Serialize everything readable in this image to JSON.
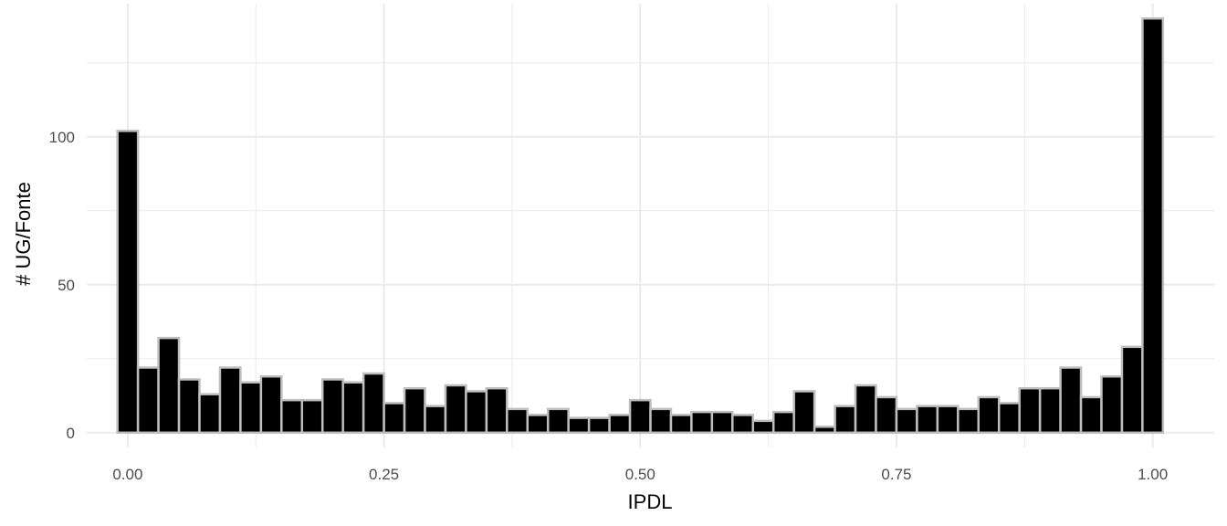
{
  "chart_data": {
    "type": "bar",
    "subtype": "histogram",
    "xlabel": "IPDL",
    "ylabel": "# UG/Fonte",
    "bin_width": 0.02,
    "bin_centers": [
      0.0,
      0.02,
      0.04,
      0.06,
      0.08,
      0.1,
      0.12,
      0.14,
      0.16,
      0.18,
      0.2,
      0.22,
      0.24,
      0.26,
      0.28,
      0.3,
      0.32,
      0.34,
      0.36,
      0.38,
      0.4,
      0.42,
      0.44,
      0.46,
      0.48,
      0.5,
      0.52,
      0.54,
      0.56,
      0.58,
      0.6,
      0.62,
      0.64,
      0.66,
      0.68,
      0.7,
      0.72,
      0.74,
      0.76,
      0.78,
      0.8,
      0.82,
      0.84,
      0.86,
      0.88,
      0.9,
      0.92,
      0.94,
      0.96,
      0.98,
      1.0
    ],
    "values": [
      102,
      22,
      32,
      18,
      13,
      22,
      17,
      19,
      11,
      11,
      18,
      17,
      20,
      10,
      15,
      9,
      16,
      14,
      15,
      8,
      6,
      8,
      5,
      5,
      6,
      11,
      8,
      6,
      7,
      7,
      6,
      4,
      7,
      14,
      2,
      9,
      16,
      12,
      8,
      9,
      9,
      8,
      12,
      10,
      15,
      15,
      22,
      12,
      19,
      29,
      140
    ],
    "xlim": [
      -0.04,
      1.06
    ],
    "ylim": [
      -5,
      145
    ],
    "x_ticks": [
      0,
      0.25,
      0.5,
      0.75,
      1
    ],
    "x_tick_labels": [
      "0.00",
      "0.25",
      "0.50",
      "0.75",
      "1.00"
    ],
    "y_ticks": [
      0,
      50,
      100
    ],
    "y_tick_labels": [
      "0",
      "50",
      "100"
    ],
    "grid": true,
    "legend": "none",
    "bar_fill": "#000000",
    "bar_outline": "#bebebe",
    "grid_color": "#ebebeb"
  }
}
